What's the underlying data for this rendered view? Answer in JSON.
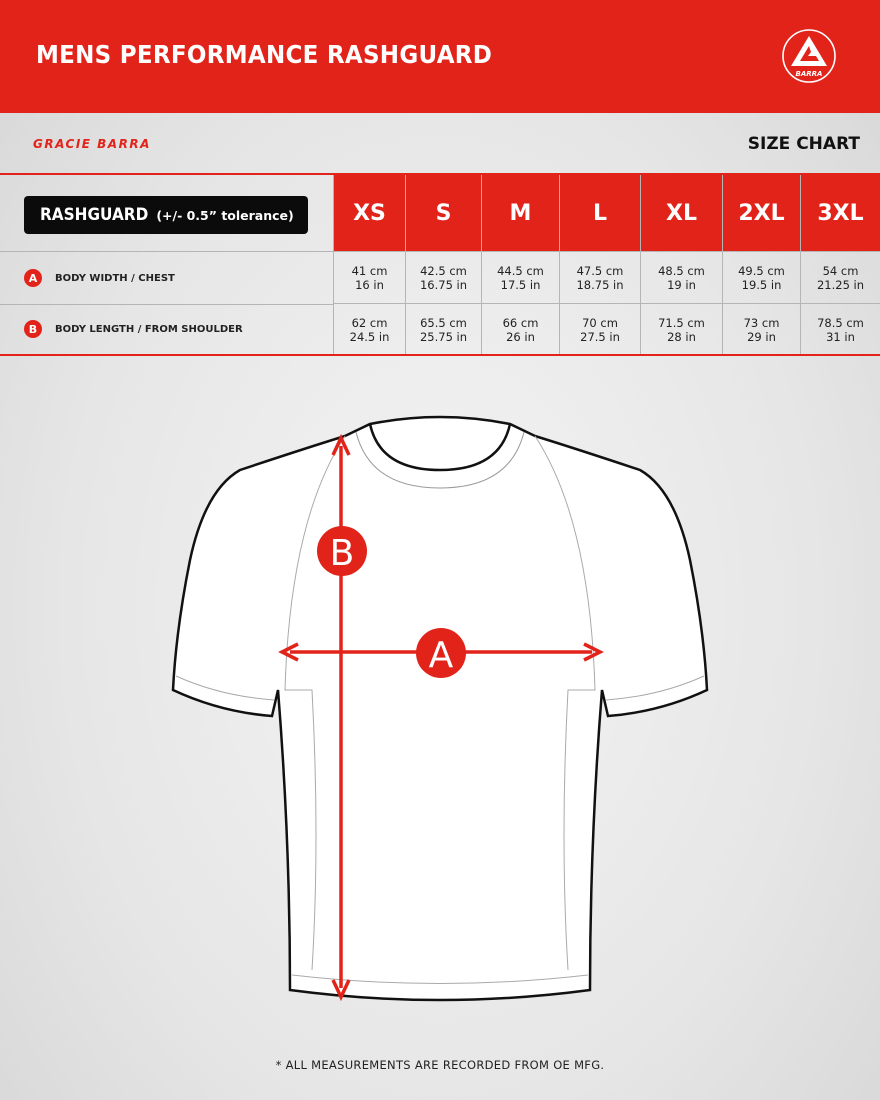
{
  "header": {
    "title": "MENS PERFORMANCE RASHGUARD",
    "logo_text": "BARRA",
    "brand": "GRACIE BARRA",
    "section": "SIZE CHART"
  },
  "colors": {
    "accent": "#e2231a",
    "label_bg": "#0b0b0b"
  },
  "table": {
    "label": "RASHGUARD",
    "tolerance": "(+/- 0.5” tolerance)",
    "sizes": [
      "XS",
      "S",
      "M",
      "L",
      "XL",
      "2XL",
      "3XL"
    ],
    "rows": [
      {
        "badge": "A",
        "label": "BODY WIDTH / CHEST",
        "cm": [
          "41 cm",
          "42.5 cm",
          "44.5 cm",
          "47.5 cm",
          "48.5 cm",
          "49.5 cm",
          "54 cm"
        ],
        "in": [
          "16 in",
          "16.75 in",
          "17.5 in",
          "18.75 in",
          "19 in",
          "19.5 in",
          "21.25 in"
        ]
      },
      {
        "badge": "B",
        "label": "BODY LENGTH / FROM SHOULDER",
        "cm": [
          "62 cm",
          "65.5 cm",
          "66 cm",
          "70 cm",
          "71.5 cm",
          "73 cm",
          "78.5 cm"
        ],
        "in": [
          "24.5 in",
          "25.75 in",
          "26 in",
          "27.5 in",
          "28 in",
          "29 in",
          "31 in"
        ]
      }
    ]
  },
  "diagram": {
    "marker_a": "A",
    "marker_b": "B"
  },
  "footnote": "* ALL MEASUREMENTS ARE RECORDED FROM OE MFG."
}
